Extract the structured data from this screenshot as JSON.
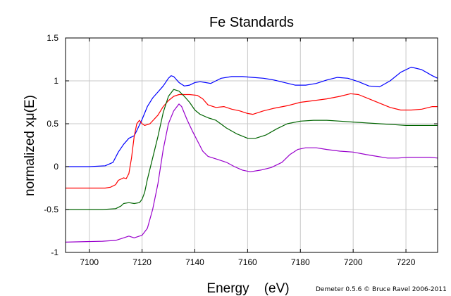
{
  "chart_data": {
    "type": "line",
    "title": "Fe Standards",
    "xlabel": "Energy    (eV)",
    "ylabel": "normalized xμ(E)",
    "credit": "Demeter 0.5.6 © Bruce Ravel 2006-2011",
    "xlim": [
      7091,
      7232
    ],
    "ylim": [
      -1,
      1.5
    ],
    "xticks": [
      7100,
      7120,
      7140,
      7160,
      7180,
      7200,
      7220
    ],
    "yticks": [
      -1,
      -0.5,
      0,
      0.5,
      1,
      1.5
    ],
    "ytick_labels": [
      "-1",
      "-0.5",
      "0",
      "0.5",
      "1",
      "1.5"
    ],
    "grid": true,
    "legend": "none",
    "series": [
      {
        "color": "#0000ff",
        "points": [
          [
            7091,
            0
          ],
          [
            7100,
            0
          ],
          [
            7106,
            0.01
          ],
          [
            7109,
            0.05
          ],
          [
            7111,
            0.17
          ],
          [
            7113,
            0.26
          ],
          [
            7115,
            0.33
          ],
          [
            7117,
            0.36
          ],
          [
            7118,
            0.42
          ],
          [
            7120,
            0.55
          ],
          [
            7122,
            0.7
          ],
          [
            7124,
            0.8
          ],
          [
            7126,
            0.87
          ],
          [
            7128,
            0.94
          ],
          [
            7130,
            1.03
          ],
          [
            7131,
            1.06
          ],
          [
            7132,
            1.05
          ],
          [
            7134,
            0.98
          ],
          [
            7136,
            0.94
          ],
          [
            7138,
            0.95
          ],
          [
            7140,
            0.98
          ],
          [
            7142,
            0.99
          ],
          [
            7144,
            0.98
          ],
          [
            7146,
            0.97
          ],
          [
            7148,
            1
          ],
          [
            7150,
            1.03
          ],
          [
            7154,
            1.05
          ],
          [
            7158,
            1.05
          ],
          [
            7162,
            1.04
          ],
          [
            7166,
            1.03
          ],
          [
            7170,
            1.01
          ],
          [
            7174,
            0.98
          ],
          [
            7178,
            0.95
          ],
          [
            7182,
            0.95
          ],
          [
            7186,
            0.97
          ],
          [
            7190,
            1.01
          ],
          [
            7194,
            1.04
          ],
          [
            7198,
            1.03
          ],
          [
            7202,
            0.99
          ],
          [
            7206,
            0.94
          ],
          [
            7210,
            0.93
          ],
          [
            7214,
            1
          ],
          [
            7218,
            1.1
          ],
          [
            7222,
            1.16
          ],
          [
            7226,
            1.13
          ],
          [
            7230,
            1.06
          ],
          [
            7232,
            1.03
          ]
        ]
      },
      {
        "color": "#ff0000",
        "points": [
          [
            7091,
            -0.25
          ],
          [
            7100,
            -0.25
          ],
          [
            7106,
            -0.25
          ],
          [
            7108,
            -0.24
          ],
          [
            7110,
            -0.21
          ],
          [
            7111,
            -0.16
          ],
          [
            7113,
            -0.13
          ],
          [
            7114,
            -0.14
          ],
          [
            7115,
            -0.08
          ],
          [
            7116,
            0.1
          ],
          [
            7117,
            0.35
          ],
          [
            7118,
            0.5
          ],
          [
            7119,
            0.54
          ],
          [
            7120,
            0.5
          ],
          [
            7121,
            0.48
          ],
          [
            7123,
            0.5
          ],
          [
            7126,
            0.6
          ],
          [
            7128,
            0.7
          ],
          [
            7130,
            0.77
          ],
          [
            7132,
            0.82
          ],
          [
            7134,
            0.84
          ],
          [
            7138,
            0.84
          ],
          [
            7141,
            0.83
          ],
          [
            7143,
            0.79
          ],
          [
            7145,
            0.72
          ],
          [
            7148,
            0.69
          ],
          [
            7151,
            0.7
          ],
          [
            7154,
            0.67
          ],
          [
            7157,
            0.65
          ],
          [
            7160,
            0.62
          ],
          [
            7162,
            0.61
          ],
          [
            7166,
            0.65
          ],
          [
            7170,
            0.68
          ],
          [
            7175,
            0.71
          ],
          [
            7180,
            0.75
          ],
          [
            7185,
            0.77
          ],
          [
            7190,
            0.79
          ],
          [
            7195,
            0.82
          ],
          [
            7199,
            0.85
          ],
          [
            7202,
            0.84
          ],
          [
            7206,
            0.79
          ],
          [
            7210,
            0.74
          ],
          [
            7214,
            0.69
          ],
          [
            7218,
            0.66
          ],
          [
            7222,
            0.66
          ],
          [
            7226,
            0.67
          ],
          [
            7230,
            0.7
          ],
          [
            7232,
            0.7
          ]
        ]
      },
      {
        "color": "#006400",
        "points": [
          [
            7091,
            -0.5
          ],
          [
            7105,
            -0.5
          ],
          [
            7110,
            -0.49
          ],
          [
            7112,
            -0.46
          ],
          [
            7113,
            -0.43
          ],
          [
            7115,
            -0.42
          ],
          [
            7117,
            -0.43
          ],
          [
            7119,
            -0.42
          ],
          [
            7120,
            -0.38
          ],
          [
            7121,
            -0.3
          ],
          [
            7122,
            -0.15
          ],
          [
            7124,
            0.1
          ],
          [
            7126,
            0.35
          ],
          [
            7128,
            0.63
          ],
          [
            7130,
            0.82
          ],
          [
            7132,
            0.9
          ],
          [
            7134,
            0.88
          ],
          [
            7136,
            0.82
          ],
          [
            7138,
            0.75
          ],
          [
            7140,
            0.66
          ],
          [
            7142,
            0.61
          ],
          [
            7145,
            0.57
          ],
          [
            7148,
            0.54
          ],
          [
            7152,
            0.45
          ],
          [
            7156,
            0.38
          ],
          [
            7160,
            0.33
          ],
          [
            7163,
            0.33
          ],
          [
            7167,
            0.37
          ],
          [
            7171,
            0.44
          ],
          [
            7175,
            0.5
          ],
          [
            7180,
            0.53
          ],
          [
            7185,
            0.54
          ],
          [
            7190,
            0.54
          ],
          [
            7195,
            0.53
          ],
          [
            7200,
            0.52
          ],
          [
            7205,
            0.51
          ],
          [
            7210,
            0.5
          ],
          [
            7215,
            0.49
          ],
          [
            7220,
            0.48
          ],
          [
            7225,
            0.48
          ],
          [
            7232,
            0.48
          ]
        ]
      },
      {
        "color": "#9900cc",
        "points": [
          [
            7091,
            -0.88
          ],
          [
            7105,
            -0.87
          ],
          [
            7110,
            -0.86
          ],
          [
            7113,
            -0.83
          ],
          [
            7115,
            -0.81
          ],
          [
            7117,
            -0.83
          ],
          [
            7120,
            -0.8
          ],
          [
            7122,
            -0.72
          ],
          [
            7124,
            -0.5
          ],
          [
            7126,
            -0.2
          ],
          [
            7128,
            0.2
          ],
          [
            7130,
            0.5
          ],
          [
            7132,
            0.65
          ],
          [
            7134,
            0.73
          ],
          [
            7135,
            0.7
          ],
          [
            7137,
            0.55
          ],
          [
            7139,
            0.42
          ],
          [
            7141,
            0.3
          ],
          [
            7143,
            0.18
          ],
          [
            7145,
            0.12
          ],
          [
            7147,
            0.1
          ],
          [
            7149,
            0.08
          ],
          [
            7152,
            0.05
          ],
          [
            7155,
            0
          ],
          [
            7158,
            -0.04
          ],
          [
            7161,
            -0.06
          ],
          [
            7165,
            -0.04
          ],
          [
            7169,
            -0.01
          ],
          [
            7173,
            0.05
          ],
          [
            7176,
            0.14
          ],
          [
            7179,
            0.2
          ],
          [
            7182,
            0.22
          ],
          [
            7186,
            0.22
          ],
          [
            7190,
            0.2
          ],
          [
            7195,
            0.18
          ],
          [
            7200,
            0.17
          ],
          [
            7205,
            0.14
          ],
          [
            7209,
            0.12
          ],
          [
            7213,
            0.1
          ],
          [
            7217,
            0.1
          ],
          [
            7221,
            0.11
          ],
          [
            7225,
            0.11
          ],
          [
            7229,
            0.11
          ],
          [
            7232,
            0.1
          ]
        ]
      }
    ]
  }
}
